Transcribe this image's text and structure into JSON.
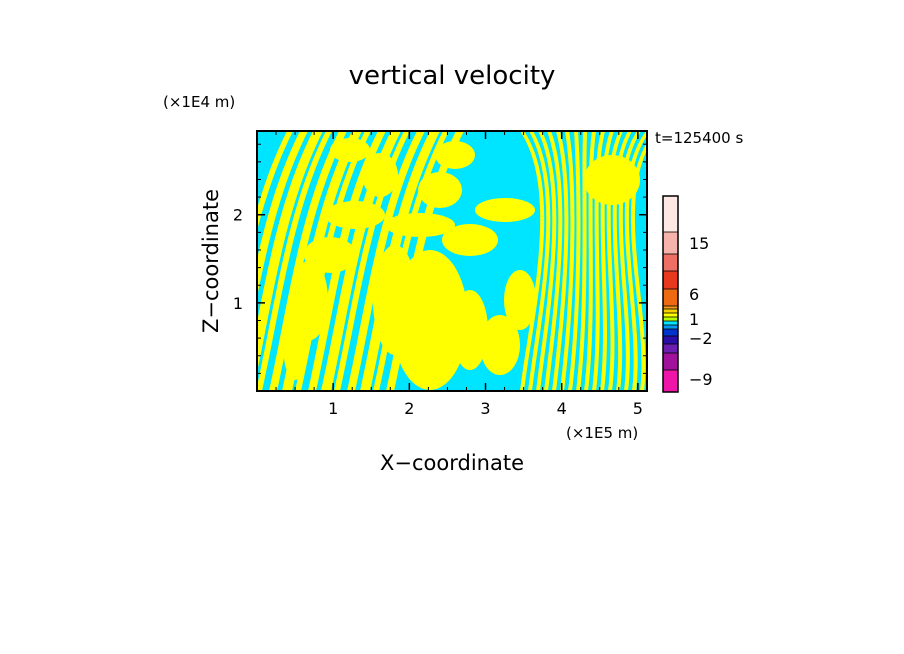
{
  "chart_data": {
    "type": "heatmap",
    "title": "vertical velocity",
    "xlabel": "X−coordinate",
    "ylabel": "Z−coordinate",
    "x_unit": "(×1E5 m)",
    "y_unit": "(×1E4 m)",
    "time_label": "t=125400 s",
    "xlim": [
      0,
      5.12
    ],
    "ylim": [
      0,
      2.95
    ],
    "x_ticks": [
      1,
      2,
      3,
      4,
      5
    ],
    "y_ticks": [
      1,
      2
    ],
    "colorbar": {
      "tick_labels": [
        "15",
        "6",
        "1",
        "−2",
        "−9"
      ],
      "tick_values": [
        15,
        6,
        1,
        -2,
        -9
      ]
    },
    "dominant_colors": {
      "positive": "#ffff00",
      "negative": "#00e5ff"
    }
  }
}
